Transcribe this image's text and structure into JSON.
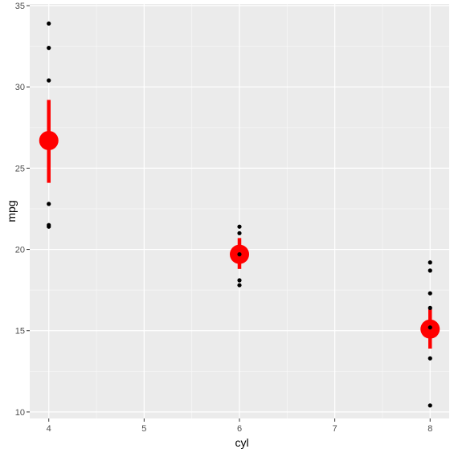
{
  "chart_data": {
    "type": "scatter",
    "xlabel": "cyl",
    "ylabel": "mpg",
    "xlim": [
      3.8,
      8.2
    ],
    "ylim": [
      9.6,
      35.1
    ],
    "x_ticks": [
      4,
      5,
      6,
      7,
      8
    ],
    "y_ticks": [
      10,
      15,
      20,
      25,
      30,
      35
    ],
    "grid": true,
    "points": [
      {
        "x": 4,
        "y": 33.9
      },
      {
        "x": 4,
        "y": 32.4
      },
      {
        "x": 4,
        "y": 30.4
      },
      {
        "x": 4,
        "y": 22.8
      },
      {
        "x": 4,
        "y": 21.5
      },
      {
        "x": 4,
        "y": 21.4
      },
      {
        "x": 6,
        "y": 21.4
      },
      {
        "x": 6,
        "y": 21.0
      },
      {
        "x": 6,
        "y": 19.7
      },
      {
        "x": 6,
        "y": 18.1
      },
      {
        "x": 6,
        "y": 17.8
      },
      {
        "x": 8,
        "y": 19.2
      },
      {
        "x": 8,
        "y": 18.7
      },
      {
        "x": 8,
        "y": 17.3
      },
      {
        "x": 8,
        "y": 16.4
      },
      {
        "x": 8,
        "y": 15.2
      },
      {
        "x": 8,
        "y": 13.3
      },
      {
        "x": 8,
        "y": 10.4
      }
    ],
    "summary": [
      {
        "x": 4,
        "mean": 26.7,
        "ymin": 24.1,
        "ymax": 29.2
      },
      {
        "x": 6,
        "mean": 19.7,
        "ymin": 18.8,
        "ymax": 20.7
      },
      {
        "x": 8,
        "mean": 15.1,
        "ymin": 13.9,
        "ymax": 16.4
      }
    ],
    "colors": {
      "panel": "#ebebeb",
      "grid_major": "#ffffff",
      "grid_minor": "#f7f7f7",
      "points": "#000000",
      "summary": "#ff0000"
    }
  }
}
